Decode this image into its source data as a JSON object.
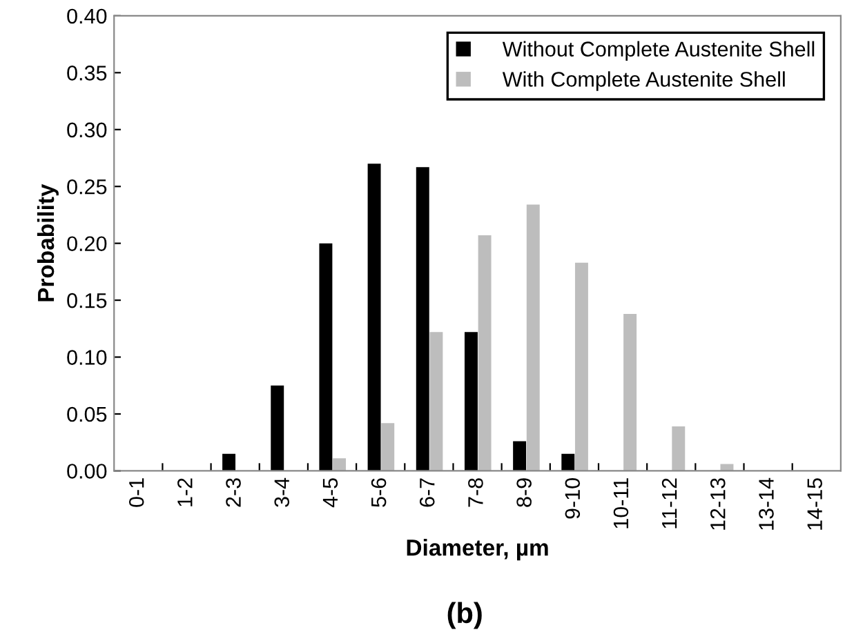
{
  "chart_data": {
    "type": "bar",
    "xlabel": "Diameter, µm",
    "ylabel": "Probability",
    "categories": [
      "0-1",
      "1-2",
      "2-3",
      "3-4",
      "4-5",
      "5-6",
      "6-7",
      "7-8",
      "8-9",
      "9-10",
      "10-11",
      "11-12",
      "12-13",
      "13-14",
      "14-15"
    ],
    "series": [
      {
        "name": "Without Complete Austenite Shell",
        "color": "#000000",
        "values": [
          0,
          0,
          0.015,
          0.075,
          0.2,
          0.27,
          0.267,
          0.122,
          0.026,
          0.015,
          0,
          0,
          0,
          0,
          0
        ]
      },
      {
        "name": "With Complete Austenite Shell",
        "color": "#bdbdbd",
        "values": [
          0,
          0,
          0,
          0,
          0.011,
          0.042,
          0.122,
          0.207,
          0.234,
          0.183,
          0.138,
          0.039,
          0.006,
          0,
          0
        ]
      }
    ],
    "ylim": [
      0,
      0.4
    ],
    "yticks": [
      {
        "value": 0,
        "label": "0.00"
      },
      {
        "value": 0.05,
        "label": "0.05"
      },
      {
        "value": 0.1,
        "label": "0.10"
      },
      {
        "value": 0.15,
        "label": "0.15"
      },
      {
        "value": 0.2,
        "label": "0.20"
      },
      {
        "value": 0.25,
        "label": "0.25"
      },
      {
        "value": 0.3,
        "label": "0.30"
      },
      {
        "value": 0.35,
        "label": "0.35"
      },
      {
        "value": 0.4,
        "label": "0.40"
      }
    ],
    "grid": false,
    "legend": "top right",
    "annotations": [
      "(b)"
    ]
  }
}
